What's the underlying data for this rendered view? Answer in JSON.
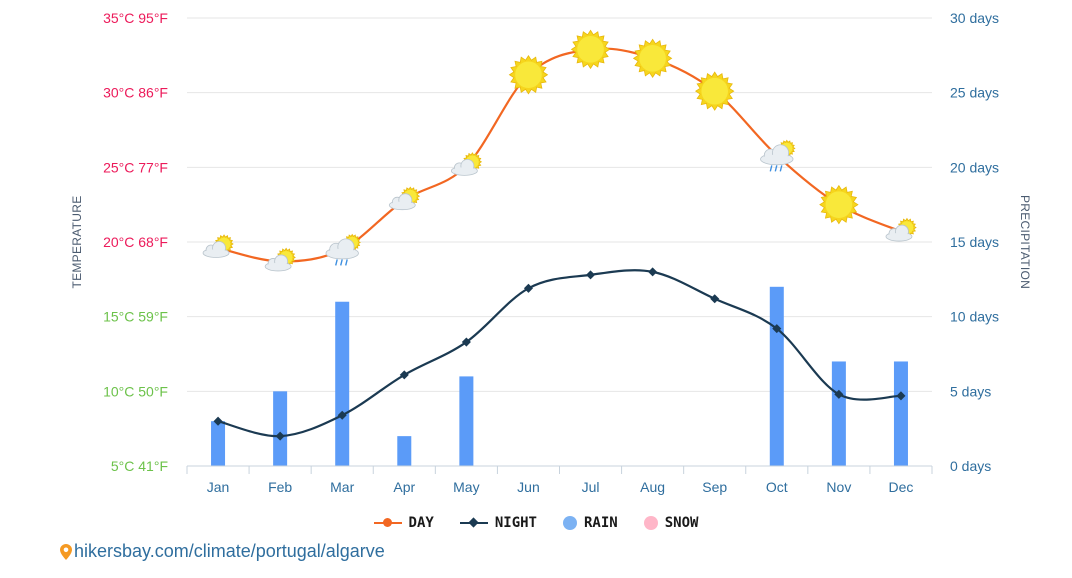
{
  "chart_data": {
    "type": "line",
    "categories": [
      "Jan",
      "Feb",
      "Mar",
      "Apr",
      "May",
      "Jun",
      "Jul",
      "Aug",
      "Sep",
      "Oct",
      "Nov",
      "Dec"
    ],
    "series": [
      {
        "name": "DAY",
        "kind": "line",
        "axis": "left",
        "color": "#f26722",
        "values": [
          19.6,
          18.7,
          19.5,
          22.8,
          25.1,
          31.2,
          32.9,
          32.3,
          30.1,
          25.8,
          22.5,
          20.7
        ]
      },
      {
        "name": "NIGHT",
        "kind": "line",
        "axis": "left",
        "color": "#1b3a52",
        "values": [
          8.0,
          7.0,
          8.4,
          11.1,
          13.3,
          16.9,
          17.8,
          18.0,
          16.2,
          14.2,
          9.8,
          9.7
        ]
      },
      {
        "name": "RAIN",
        "kind": "bar",
        "axis": "right",
        "color": "#5b9bf8",
        "values": [
          3,
          5,
          11,
          2,
          6,
          0,
          0,
          0,
          0,
          12,
          7,
          7
        ]
      },
      {
        "name": "SNOW",
        "kind": "bar",
        "axis": "right",
        "color": "#ffb6c8",
        "values": [
          0,
          0,
          0,
          0,
          0,
          0,
          0,
          0,
          0,
          0,
          0,
          0
        ]
      }
    ],
    "weather_icons": [
      "sun-cloud-icon",
      "sun-cloud-icon",
      "rain-cloud-icon",
      "sun-cloud-icon",
      "sun-cloud-icon",
      "sun-icon",
      "sun-icon",
      "sun-icon",
      "sun-icon",
      "rain-cloud-icon",
      "sun-icon",
      "sun-cloud-icon"
    ],
    "left_axis": {
      "title": "TEMPERATURE",
      "ylim": [
        5,
        35
      ],
      "ticks": [
        {
          "value": 5,
          "label": "5°C 41°F",
          "color": "#6cc24a"
        },
        {
          "value": 10,
          "label": "10°C 50°F",
          "color": "#6cc24a"
        },
        {
          "value": 15,
          "label": "15°C 59°F",
          "color": "#6cc24a"
        },
        {
          "value": 20,
          "label": "20°C 68°F",
          "color": "#ec1a5a"
        },
        {
          "value": 25,
          "label": "25°C 77°F",
          "color": "#ec1a5a"
        },
        {
          "value": 30,
          "label": "30°C 86°F",
          "color": "#ec1a5a"
        },
        {
          "value": 35,
          "label": "35°C 95°F",
          "color": "#ec1a5a"
        }
      ]
    },
    "right_axis": {
      "title": "PRECIPITATION",
      "ylim": [
        0,
        30
      ],
      "ticks": [
        {
          "value": 0,
          "label": "0 days"
        },
        {
          "value": 5,
          "label": "5 days"
        },
        {
          "value": 10,
          "label": "10 days"
        },
        {
          "value": 15,
          "label": "15 days"
        },
        {
          "value": 20,
          "label": "20 days"
        },
        {
          "value": 25,
          "label": "25 days"
        },
        {
          "value": 30,
          "label": "30 days"
        }
      ]
    },
    "grid": true,
    "legend_position": "bottom-center"
  },
  "legend": {
    "day": "DAY",
    "night": "NIGHT",
    "rain": "RAIN",
    "snow": "SNOW"
  },
  "source": {
    "text": "hikersbay.com/climate/portugal/algarve",
    "icon": "location-pin-icon",
    "icon_color": "#f59a23"
  }
}
